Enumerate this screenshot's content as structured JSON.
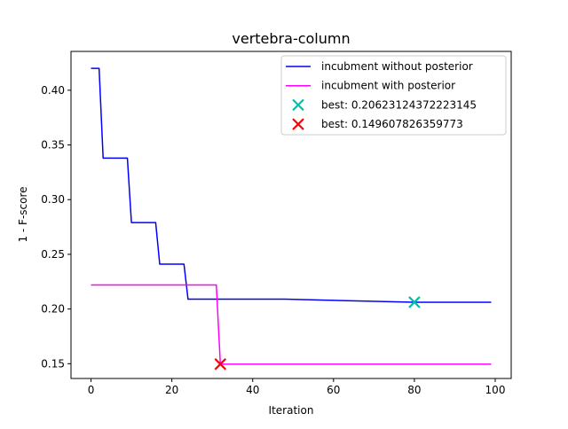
{
  "chart_data": {
    "type": "line",
    "title": "vertebra-column",
    "xlabel": "Iteration",
    "ylabel": "1 - F-score",
    "xlim": [
      -4.95,
      103.95
    ],
    "ylim": [
      0.1365,
      0.4355
    ],
    "xticks": [
      0,
      20,
      40,
      60,
      80,
      100
    ],
    "yticks": [
      0.15,
      0.2,
      0.25,
      0.3,
      0.35,
      0.4
    ],
    "xtick_labels": [
      "0",
      "20",
      "40",
      "60",
      "80",
      "100"
    ],
    "ytick_labels": [
      "0.15",
      "0.20",
      "0.25",
      "0.30",
      "0.35",
      "0.40"
    ],
    "grid": false,
    "legend_position": "top-right",
    "series": [
      {
        "name": "incubment without posterior",
        "color": "#0000ff",
        "x": [
          0,
          2,
          3,
          9,
          10,
          16,
          17,
          23,
          24,
          48,
          80,
          99
        ],
        "y": [
          0.42,
          0.42,
          0.338,
          0.338,
          0.279,
          0.279,
          0.241,
          0.241,
          0.209,
          0.209,
          0.2062,
          0.2062
        ],
        "step": "post"
      },
      {
        "name": "incubment with posterior",
        "color": "#ff00ff",
        "x": [
          0,
          31,
          32,
          99
        ],
        "y": [
          0.222,
          0.222,
          0.1496,
          0.1496
        ],
        "step": "post"
      }
    ],
    "markers": [
      {
        "name": "best: 0.20623124372223145",
        "color": "#00bfa8",
        "x": 80,
        "y": 0.20623124372223145,
        "marker": "x"
      },
      {
        "name": "best: 0.149607826359773",
        "color": "#ff0000",
        "x": 32,
        "y": 0.149607826359773,
        "marker": "x"
      }
    ]
  }
}
